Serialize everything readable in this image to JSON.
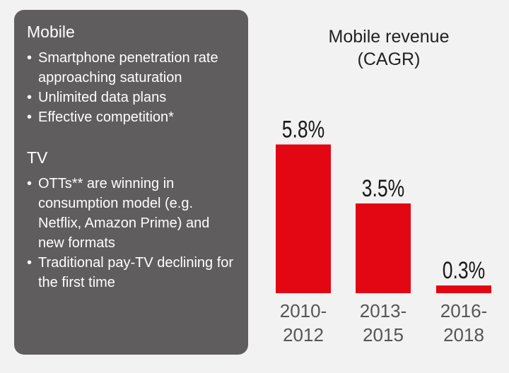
{
  "left_panel": {
    "sections": [
      {
        "title": "Mobile",
        "bullets": [
          "Smartphone penetration rate approaching saturation",
          "Unlimited data plans",
          "Effective competition*"
        ]
      },
      {
        "title": "TV",
        "bullets": [
          "OTTs** are winning in consumption model (e.g. Netflix, Amazon Prime) and new formats",
          "Traditional pay-TV declining for the first time"
        ]
      }
    ]
  },
  "chart_data": {
    "type": "bar",
    "title": "Mobile revenue (CAGR)",
    "title_lines": [
      "Mobile revenue",
      "(CAGR)"
    ],
    "categories": [
      "2010-2012",
      "2013-2015",
      "2016-2018"
    ],
    "category_lines": [
      [
        "2010-",
        "2012"
      ],
      [
        "2013-",
        "2015"
      ],
      [
        "2016-",
        "2018"
      ]
    ],
    "values": [
      5.8,
      3.5,
      0.3
    ],
    "value_labels": [
      "5.8%",
      "3.5%",
      "0.3%"
    ],
    "ylim": [
      0,
      6.2
    ],
    "bar_color": "#e30613",
    "grid": false,
    "legend": "none"
  },
  "colors": {
    "panel_background": "#5f5d5d",
    "page_background": "#f2f2f2",
    "bar": "#e30613"
  }
}
